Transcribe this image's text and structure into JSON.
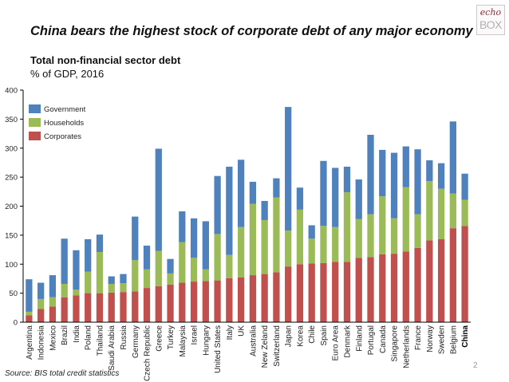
{
  "slide": {
    "headline": "China bears the highest stock of corporate debt of any major economy",
    "logo_top": "echo",
    "logo_bottom": "BOX",
    "source": "Source: BIS total credit statistics",
    "page_number": "2"
  },
  "chart_data": {
    "type": "bar",
    "stacked": true,
    "title": "Total non-financial sector debt",
    "subtitle": "% of GDP, 2016",
    "xlabel": "",
    "ylabel": "",
    "ylim": [
      0,
      400
    ],
    "yticks": [
      0,
      50,
      100,
      150,
      200,
      250,
      300,
      350,
      400
    ],
    "grid": false,
    "legend_position": "top-left",
    "highlight_category": "China",
    "categories": [
      "Argentina",
      "Indonesia",
      "Mexico",
      "Brazil",
      "India",
      "Poland",
      "Thailand",
      "Saudi Arabia",
      "Russia",
      "Germany",
      "Czech Republic",
      "Greece",
      "Turkey",
      "Malaysia",
      "Israel",
      "Hungary",
      "United States",
      "Italy",
      "UK",
      "Australia",
      "New Zeland",
      "Switzerland",
      "Japan",
      "Korea",
      "Chile",
      "Spain",
      "Euro Area",
      "Denmark",
      "Finland",
      "Portugal",
      "Canada",
      "Singapore",
      "Netherlands",
      "France",
      "Norway",
      "Sweden",
      "Belgium",
      "China"
    ],
    "series": [
      {
        "name": "Corporates",
        "color": "#c0504d",
        "values": [
          12,
          23,
          27,
          43,
          46,
          50,
          50,
          51,
          52,
          53,
          59,
          62,
          65,
          68,
          70,
          71,
          72,
          76,
          77,
          81,
          83,
          86,
          96,
          100,
          101,
          102,
          104,
          104,
          111,
          112,
          117,
          118,
          122,
          128,
          141,
          143,
          162,
          166
        ]
      },
      {
        "name": "Households",
        "color": "#9bbb59",
        "values": [
          6,
          17,
          16,
          23,
          10,
          37,
          71,
          15,
          15,
          54,
          32,
          61,
          19,
          70,
          41,
          20,
          80,
          40,
          87,
          123,
          93,
          129,
          62,
          94,
          43,
          64,
          60,
          120,
          67,
          74,
          100,
          61,
          111,
          58,
          102,
          87,
          60,
          45
        ]
      },
      {
        "name": "Government",
        "color": "#4f81bd",
        "values": [
          56,
          28,
          38,
          78,
          68,
          56,
          30,
          13,
          16,
          75,
          41,
          176,
          25,
          53,
          68,
          83,
          100,
          152,
          116,
          38,
          33,
          33,
          213,
          38,
          23,
          112,
          102,
          44,
          68,
          137,
          80,
          113,
          70,
          112,
          36,
          44,
          124,
          45
        ]
      }
    ],
    "legend_order": [
      "Government",
      "Households",
      "Corporates"
    ]
  }
}
